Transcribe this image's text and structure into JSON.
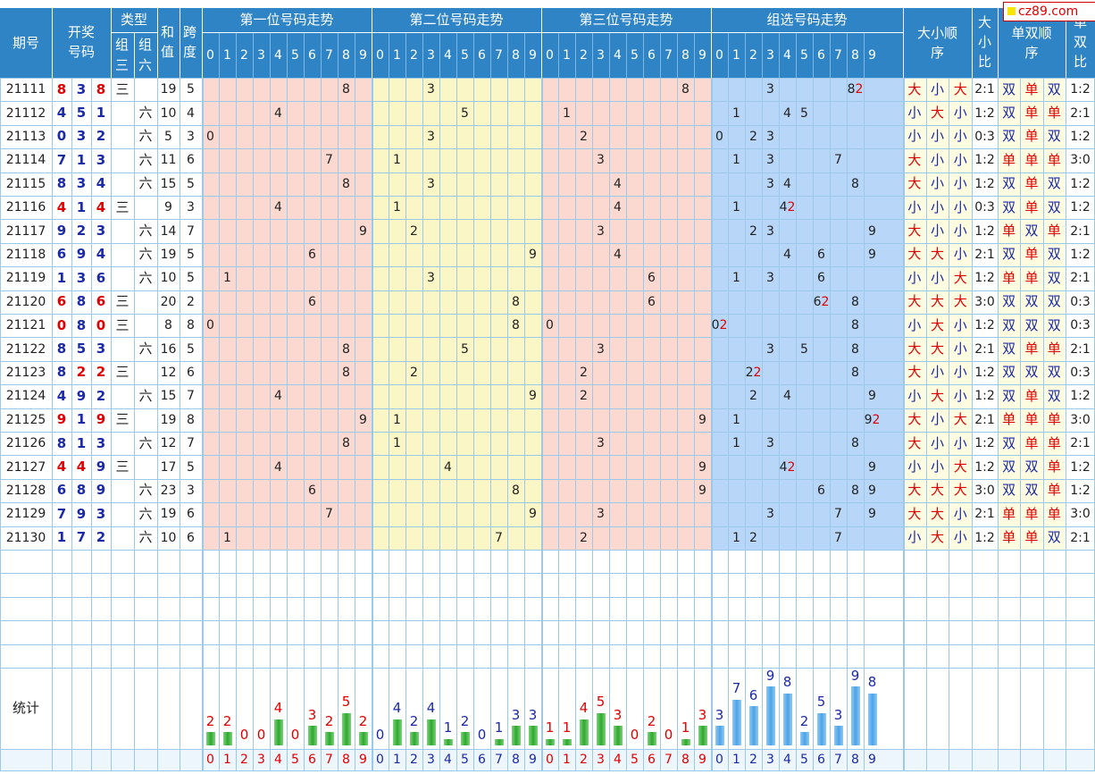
{
  "site_label": "cz89.com",
  "colors": {
    "header_bg": "#2f84c6",
    "pos1_bg": "#fbd9d0",
    "pos2_bg": "#fbf6c6",
    "pos3_bg": "#fbd9d0",
    "group_bg": "#b8d6f7",
    "grid": "#9cc9ea",
    "red": "#e00000",
    "blue": "#1a2aa8",
    "green_bar": "#2ea82e",
    "blue_bar": "#4ca3e6"
  },
  "headers": {
    "period": "期号",
    "draw": "开奖号码",
    "type": "类型",
    "type_g3": "组三",
    "type_g6": "组六",
    "sum": "和值",
    "span": "跨度",
    "pos1": "第一位号码走势",
    "pos2": "第二位号码走势",
    "pos3": "第三位号码走势",
    "group": "组选号码走势",
    "size_order": "大小顺序",
    "size_ratio": "大小比",
    "parity_order": "单双顺序",
    "parity_ratio": "单双比",
    "digits": [
      "0",
      "1",
      "2",
      "3",
      "4",
      "5",
      "6",
      "7",
      "8",
      "9"
    ]
  },
  "type_labels": {
    "g3": "三",
    "g6": "六"
  },
  "rows": [
    {
      "period": "21111",
      "draw": [
        "8",
        "3",
        "8"
      ],
      "type": "g3",
      "sum": "19",
      "span": "5",
      "size": [
        "大",
        "小",
        "大"
      ],
      "size_ratio": "2:1",
      "parity": [
        "双",
        "单",
        "双"
      ],
      "parity_ratio": "1:2"
    },
    {
      "period": "21112",
      "draw": [
        "4",
        "5",
        "1"
      ],
      "type": "g6",
      "sum": "10",
      "span": "4",
      "size": [
        "小",
        "大",
        "小"
      ],
      "size_ratio": "1:2",
      "parity": [
        "双",
        "单",
        "单"
      ],
      "parity_ratio": "2:1"
    },
    {
      "period": "21113",
      "draw": [
        "0",
        "3",
        "2"
      ],
      "type": "g6",
      "sum": "5",
      "span": "3",
      "size": [
        "小",
        "小",
        "小"
      ],
      "size_ratio": "0:3",
      "parity": [
        "双",
        "单",
        "双"
      ],
      "parity_ratio": "1:2"
    },
    {
      "period": "21114",
      "draw": [
        "7",
        "1",
        "3"
      ],
      "type": "g6",
      "sum": "11",
      "span": "6",
      "size": [
        "大",
        "小",
        "小"
      ],
      "size_ratio": "1:2",
      "parity": [
        "单",
        "单",
        "单"
      ],
      "parity_ratio": "3:0"
    },
    {
      "period": "21115",
      "draw": [
        "8",
        "3",
        "4"
      ],
      "type": "g6",
      "sum": "15",
      "span": "5",
      "size": [
        "大",
        "小",
        "小"
      ],
      "size_ratio": "1:2",
      "parity": [
        "双",
        "单",
        "双"
      ],
      "parity_ratio": "1:2"
    },
    {
      "period": "21116",
      "draw": [
        "4",
        "1",
        "4"
      ],
      "type": "g3",
      "sum": "9",
      "span": "3",
      "size": [
        "小",
        "小",
        "小"
      ],
      "size_ratio": "0:3",
      "parity": [
        "双",
        "单",
        "双"
      ],
      "parity_ratio": "1:2"
    },
    {
      "period": "21117",
      "draw": [
        "9",
        "2",
        "3"
      ],
      "type": "g6",
      "sum": "14",
      "span": "7",
      "size": [
        "大",
        "小",
        "小"
      ],
      "size_ratio": "1:2",
      "parity": [
        "单",
        "双",
        "单"
      ],
      "parity_ratio": "2:1"
    },
    {
      "period": "21118",
      "draw": [
        "6",
        "9",
        "4"
      ],
      "type": "g6",
      "sum": "19",
      "span": "5",
      "size": [
        "大",
        "大",
        "小"
      ],
      "size_ratio": "2:1",
      "parity": [
        "双",
        "单",
        "双"
      ],
      "parity_ratio": "1:2"
    },
    {
      "period": "21119",
      "draw": [
        "1",
        "3",
        "6"
      ],
      "type": "g6",
      "sum": "10",
      "span": "5",
      "size": [
        "小",
        "小",
        "大"
      ],
      "size_ratio": "1:2",
      "parity": [
        "单",
        "单",
        "双"
      ],
      "parity_ratio": "2:1"
    },
    {
      "period": "21120",
      "draw": [
        "6",
        "8",
        "6"
      ],
      "type": "g3",
      "sum": "20",
      "span": "2",
      "size": [
        "大",
        "大",
        "大"
      ],
      "size_ratio": "3:0",
      "parity": [
        "双",
        "双",
        "双"
      ],
      "parity_ratio": "0:3"
    },
    {
      "period": "21121",
      "draw": [
        "0",
        "8",
        "0"
      ],
      "type": "g3",
      "sum": "8",
      "span": "8",
      "size": [
        "小",
        "大",
        "小"
      ],
      "size_ratio": "1:2",
      "parity": [
        "双",
        "双",
        "双"
      ],
      "parity_ratio": "0:3"
    },
    {
      "period": "21122",
      "draw": [
        "8",
        "5",
        "3"
      ],
      "type": "g6",
      "sum": "16",
      "span": "5",
      "size": [
        "大",
        "大",
        "小"
      ],
      "size_ratio": "2:1",
      "parity": [
        "双",
        "单",
        "单"
      ],
      "parity_ratio": "2:1"
    },
    {
      "period": "21123",
      "draw": [
        "8",
        "2",
        "2"
      ],
      "type": "g3",
      "sum": "12",
      "span": "6",
      "size": [
        "大",
        "小",
        "小"
      ],
      "size_ratio": "1:2",
      "parity": [
        "双",
        "双",
        "双"
      ],
      "parity_ratio": "0:3"
    },
    {
      "period": "21124",
      "draw": [
        "4",
        "9",
        "2"
      ],
      "type": "g6",
      "sum": "15",
      "span": "7",
      "size": [
        "小",
        "大",
        "小"
      ],
      "size_ratio": "1:2",
      "parity": [
        "双",
        "单",
        "双"
      ],
      "parity_ratio": "1:2"
    },
    {
      "period": "21125",
      "draw": [
        "9",
        "1",
        "9"
      ],
      "type": "g3",
      "sum": "19",
      "span": "8",
      "size": [
        "大",
        "小",
        "大"
      ],
      "size_ratio": "2:1",
      "parity": [
        "单",
        "单",
        "单"
      ],
      "parity_ratio": "3:0"
    },
    {
      "period": "21126",
      "draw": [
        "8",
        "1",
        "3"
      ],
      "type": "g6",
      "sum": "12",
      "span": "7",
      "size": [
        "大",
        "小",
        "小"
      ],
      "size_ratio": "1:2",
      "parity": [
        "双",
        "单",
        "单"
      ],
      "parity_ratio": "2:1"
    },
    {
      "period": "21127",
      "draw": [
        "4",
        "4",
        "9"
      ],
      "type": "g3",
      "sum": "17",
      "span": "5",
      "size": [
        "小",
        "小",
        "大"
      ],
      "size_ratio": "1:2",
      "parity": [
        "双",
        "双",
        "单"
      ],
      "parity_ratio": "1:2"
    },
    {
      "period": "21128",
      "draw": [
        "6",
        "8",
        "9"
      ],
      "type": "g6",
      "sum": "23",
      "span": "3",
      "size": [
        "大",
        "大",
        "大"
      ],
      "size_ratio": "3:0",
      "parity": [
        "双",
        "双",
        "单"
      ],
      "parity_ratio": "1:2"
    },
    {
      "period": "21129",
      "draw": [
        "7",
        "9",
        "3"
      ],
      "type": "g6",
      "sum": "19",
      "span": "6",
      "size": [
        "大",
        "大",
        "小"
      ],
      "size_ratio": "2:1",
      "parity": [
        "单",
        "单",
        "单"
      ],
      "parity_ratio": "3:0"
    },
    {
      "period": "21130",
      "draw": [
        "1",
        "7",
        "2"
      ],
      "type": "g6",
      "sum": "10",
      "span": "6",
      "size": [
        "小",
        "大",
        "小"
      ],
      "size_ratio": "1:2",
      "parity": [
        "单",
        "单",
        "双"
      ],
      "parity_ratio": "2:1"
    }
  ],
  "stats_label": "统计",
  "chart_data": {
    "type": "bar",
    "categories": [
      "0",
      "1",
      "2",
      "3",
      "4",
      "5",
      "6",
      "7",
      "8",
      "9"
    ],
    "series": [
      {
        "values": [
          2,
          2,
          0,
          0,
          4,
          0,
          3,
          2,
          5,
          2
        ]
      },
      {
        "values": [
          0,
          4,
          2,
          4,
          1,
          2,
          0,
          1,
          3,
          3
        ]
      },
      {
        "values": [
          1,
          1,
          4,
          5,
          3,
          0,
          2,
          0,
          1,
          3
        ]
      },
      {
        "values": [
          3,
          7,
          6,
          9,
          8,
          2,
          5,
          3,
          9,
          8
        ]
      }
    ]
  }
}
